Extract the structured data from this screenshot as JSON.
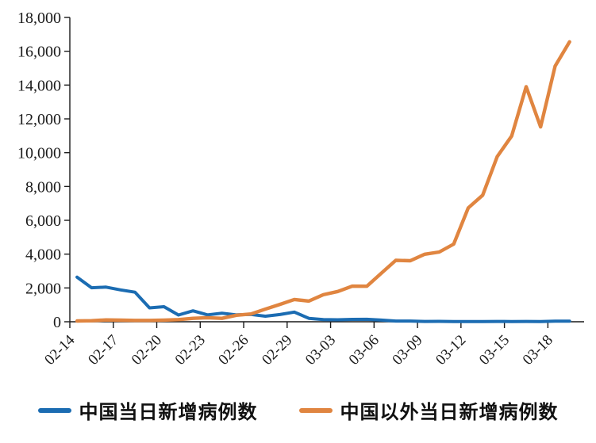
{
  "chart_data": {
    "type": "line",
    "x": [
      "02-14",
      "02-15",
      "02-16",
      "02-17",
      "02-18",
      "02-19",
      "02-20",
      "02-21",
      "02-22",
      "02-23",
      "02-24",
      "02-25",
      "02-26",
      "02-27",
      "02-28",
      "02-29",
      "03-01",
      "03-02",
      "03-03",
      "03-04",
      "03-05",
      "03-06",
      "03-07",
      "03-08",
      "03-09",
      "03-10",
      "03-11",
      "03-12",
      "03-13",
      "03-14",
      "03-15",
      "03-16",
      "03-17",
      "03-18",
      "03-19"
    ],
    "x_tick_labels": [
      "02-14",
      "02-17",
      "02-20",
      "02-23",
      "02-26",
      "02-29",
      "03-03",
      "03-06",
      "03-09",
      "03-12",
      "03-15",
      "03-18"
    ],
    "y_ticks": [
      0,
      2000,
      4000,
      6000,
      8000,
      10000,
      12000,
      14000,
      16000,
      18000
    ],
    "ylim": [
      0,
      18000
    ],
    "grid": false,
    "legend_position": "bottom",
    "series": [
      {
        "name": "中国当日新增病例数",
        "color": "#1B6CB2",
        "values": [
          2641,
          2009,
          2048,
          1886,
          1749,
          820,
          889,
          397,
          648,
          409,
          508,
          406,
          433,
          327,
          427,
          573,
          202,
          125,
          119,
          139,
          143,
          99,
          44,
          40,
          19,
          24,
          15,
          8,
          11,
          20,
          16,
          21,
          13,
          34,
          39
        ]
      },
      {
        "name": "中国以外当日新增病例数",
        "color": "#E08540",
        "values": [
          49,
          62,
          106,
          95,
          79,
          81,
          100,
          127,
          202,
          240,
          203,
          386,
          459,
          746,
          1027,
          1318,
          1223,
          1598,
          1792,
          2103,
          2098,
          2873,
          3633,
          3610,
          3993,
          4125,
          4596,
          6729,
          7488,
          9769,
          10982,
          13903,
          11526,
          15123,
          16556
        ]
      }
    ],
    "axis_color": "#1a1a1a"
  }
}
